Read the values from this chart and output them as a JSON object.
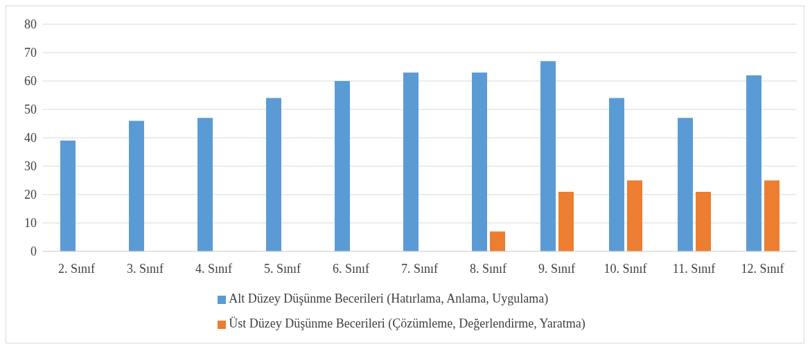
{
  "chart_data": {
    "type": "bar",
    "categories": [
      "2. Sınıf",
      "3. Sınıf",
      "4. Sınıf",
      "5. Sınıf",
      "6. Sınıf",
      "7. Sınıf",
      "8. Sınıf",
      "9. Sınıf",
      "10. Sınıf",
      "11. Sınıf",
      "12. Sınıf"
    ],
    "series": [
      {
        "name": "Alt Düzey Düşünme Becerileri (Hatırlama, Anlama, Uygulama)",
        "color": "#5b9bd5",
        "values": [
          39,
          46,
          47,
          54,
          60,
          63,
          63,
          67,
          54,
          47,
          62
        ]
      },
      {
        "name": "Üst Düzey Düşünme Becerileri (Çözümleme, Değerlendirme, Yaratma)",
        "color": "#ed7d31",
        "values": [
          0,
          0,
          0,
          0,
          0,
          0,
          7,
          21,
          25,
          21,
          25
        ]
      }
    ],
    "ylim": [
      0,
      80
    ],
    "yticks": [
      0,
      10,
      20,
      30,
      40,
      50,
      60,
      70,
      80
    ],
    "grid": "y",
    "legend": "bottom"
  }
}
